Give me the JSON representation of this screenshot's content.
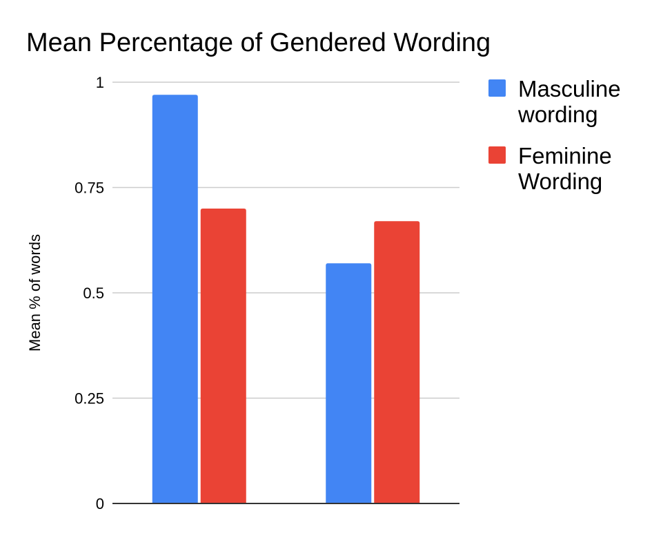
{
  "chart_data": {
    "type": "bar",
    "title": "Mean Percentage of Gendered Wording",
    "xlabel": "",
    "ylabel": "Mean % of words",
    "categories": [
      "",
      ""
    ],
    "series": [
      {
        "name": "Masculine wording",
        "color": "#4285f4",
        "values": [
          0.97,
          0.57
        ]
      },
      {
        "name": "Feminine Wording",
        "color": "#ea4335",
        "values": [
          0.7,
          0.67
        ]
      }
    ],
    "ylim": [
      0,
      1
    ],
    "yticks": [
      0,
      0.25,
      0.5,
      0.75,
      1
    ],
    "ytick_labels": [
      "0",
      "0.25",
      "0.5",
      "0.75",
      "1"
    ],
    "grid": true,
    "legend_position": "top-right"
  }
}
